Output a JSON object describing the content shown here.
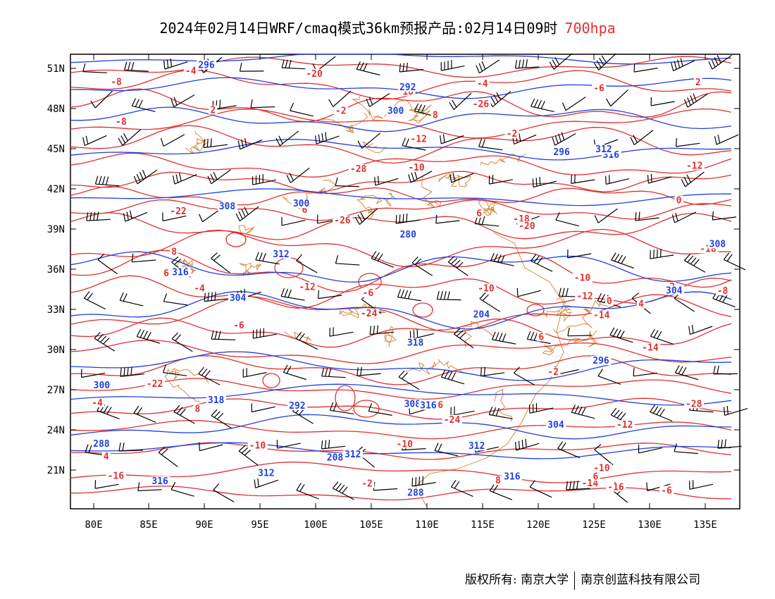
{
  "title": {
    "text": "2024年02月14日WRF/cmaq模式36km预报产品:02月14日09时",
    "level": "700hpa",
    "level_color": "#e03030"
  },
  "axes": {
    "x_ticks": [
      "80E",
      "85E",
      "90E",
      "95E",
      "100E",
      "105E",
      "110E",
      "115E",
      "120E",
      "125E",
      "130E",
      "135E"
    ],
    "y_ticks": [
      "51N",
      "48N",
      "45N",
      "42N",
      "39N",
      "36N",
      "33N",
      "30N",
      "27N",
      "24N",
      "21N"
    ]
  },
  "colors": {
    "temperature": "#e03030",
    "geopotential": "#2040e0",
    "boundary": "#d08030",
    "wind": "#000000"
  },
  "temperature_labels": [
    "-14",
    "-14",
    "-12",
    "-12",
    "-12",
    "-10",
    "-10",
    "-18",
    "-24",
    "-28",
    "-26",
    "-28",
    "-26",
    "-24",
    "-22",
    "-20",
    "-22",
    "-20",
    "-18",
    "-16",
    "-16",
    "-14",
    "-12",
    "-10",
    "-12",
    "-10",
    "-8",
    "-6",
    "-4",
    "-8",
    "-6",
    "-4",
    "-10",
    "-10",
    "-6",
    "-2",
    "0",
    "-2",
    "2",
    "0",
    "-2",
    "4",
    "2",
    "-4",
    "2",
    "6",
    "6",
    "6",
    "4",
    "8",
    "8",
    "10",
    "8",
    "8",
    "6",
    "6",
    "6",
    "-2",
    "-4",
    "-6",
    "-8"
  ],
  "height_labels": [
    "296",
    "300",
    "300",
    "304",
    "304",
    "308",
    "312",
    "308",
    "312",
    "316",
    "312",
    "316",
    "316",
    "316",
    "318",
    "318",
    "316",
    "296",
    "288",
    "292",
    "280",
    "288",
    "292",
    "296",
    "300",
    "304",
    "308",
    "312",
    "204",
    "208",
    "312"
  ],
  "footer": {
    "left": "版权所有: 南京大学",
    "right": "南京创蓝科技有限公司"
  }
}
